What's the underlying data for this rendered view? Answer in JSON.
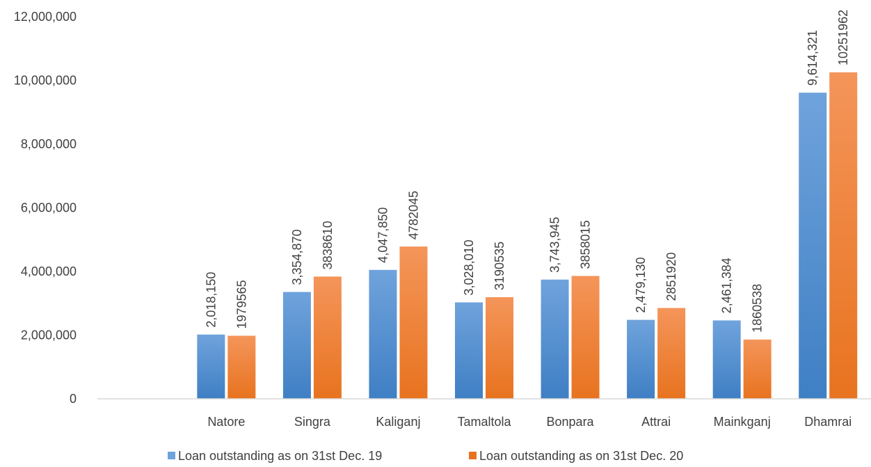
{
  "colors": {
    "series1_top": "#6fa3dc",
    "series1_bottom": "#3f7fc4",
    "series2_top": "#f4955a",
    "series2_bottom": "#e8731f",
    "axis": "#d9d9d9",
    "text": "#404040"
  },
  "chart_data": {
    "type": "bar",
    "title": "",
    "xlabel": "",
    "ylabel": "",
    "ylim": [
      0,
      12000000
    ],
    "yticks": [
      0,
      2000000,
      4000000,
      6000000,
      8000000,
      10000000,
      12000000
    ],
    "ytick_labels": [
      "0",
      "2,000,000",
      "4,000,000",
      "6,000,000",
      "8,000,000",
      "10,000,000",
      "12,000,000"
    ],
    "grid": false,
    "legend_position": "bottom",
    "categories": [
      "",
      "Natore",
      "Singra",
      "Kaliganj",
      "Tamaltola",
      "Bonpara",
      "Attrai",
      "Mainkganj",
      "Dhamrai"
    ],
    "series": [
      {
        "name": "Loan outstanding as on 31st Dec. 19",
        "values": [
          null,
          2018150,
          3354870,
          4047850,
          3028010,
          3743945,
          2479130,
          2461384,
          9614321
        ],
        "labels": [
          "",
          "2,018,150",
          "3,354,870",
          "4,047,850",
          "3,028,010",
          "3,743,945",
          "2,479,130",
          "2,461,384",
          "9,614,321"
        ]
      },
      {
        "name": "Loan outstanding as on 31st Dec. 20",
        "values": [
          null,
          1979565,
          3838610,
          4782045,
          3190535,
          3858015,
          2851920,
          1860538,
          10251962
        ],
        "labels": [
          "",
          "1979565",
          "3838610",
          "4782045",
          "3190535",
          "3858015",
          "2851920",
          "1860538",
          "10251962"
        ]
      }
    ]
  }
}
